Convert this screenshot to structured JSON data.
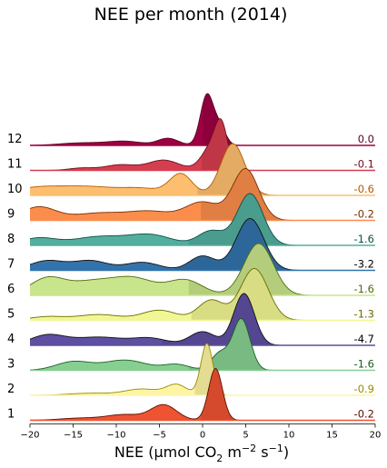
{
  "chart_data": {
    "type": "ridgeline",
    "title": "NEE per month (2014)",
    "xlabel_parts": [
      "NEE (μmol CO",
      "2",
      " m",
      "−2",
      " s",
      "−1",
      ")"
    ],
    "xlim": [
      -20,
      20
    ],
    "xticks": [
      -20,
      -15,
      -10,
      -5,
      0,
      5,
      10,
      15,
      20
    ],
    "xtick_labels": [
      "−20",
      "−15",
      "−10",
      "−5",
      "0",
      "5",
      "10",
      "15",
      "20"
    ],
    "series": [
      {
        "name": "12",
        "mean_label": "0.0",
        "mean": 0.0,
        "color": "#9e0142",
        "label_color": "#5a0125",
        "components": [
          [
            -14,
            2.5,
            0.05
          ],
          [
            -9,
            2.0,
            0.08
          ],
          [
            -4,
            1.2,
            0.14
          ],
          [
            0.5,
            0.75,
            1.0
          ],
          [
            2,
            0.7,
            0.35
          ]
        ]
      },
      {
        "name": "11",
        "mean_label": "-0.1",
        "mean": -0.1,
        "color": "#d53e4f",
        "label_color": "#6e1020",
        "components": [
          [
            -14,
            1.5,
            0.05
          ],
          [
            -9.5,
            1.8,
            0.12
          ],
          [
            -4.5,
            1.8,
            0.22
          ],
          [
            1.2,
            1.2,
            0.55
          ],
          [
            2.2,
            0.7,
            0.7
          ]
        ]
      },
      {
        "name": "10",
        "mean_label": "-0.6",
        "mean": -0.6,
        "color": "#fdbf6f",
        "label_color": "#b35a00",
        "components": [
          [
            -19,
            3.0,
            0.12
          ],
          [
            -13,
            3.0,
            0.12
          ],
          [
            -7,
            2.5,
            0.1
          ],
          [
            -2.5,
            1.3,
            0.32
          ],
          [
            3.5,
            1.4,
            0.8
          ]
        ]
      },
      {
        "name": "9",
        "mean_label": "-0.2",
        "mean": -0.2,
        "color": "#fb8d4c",
        "label_color": "#7a2f00",
        "components": [
          [
            -19,
            2.0,
            0.22
          ],
          [
            -12,
            3.0,
            0.12
          ],
          [
            -6,
            2.5,
            0.14
          ],
          [
            0,
            2.0,
            0.3
          ],
          [
            5,
            1.5,
            0.85
          ]
        ]
      },
      {
        "name": "8",
        "mean_label": "-1.6",
        "mean": -1.6,
        "color": "#53ae9e",
        "label_color": "#0e4f45",
        "components": [
          [
            -19,
            2.0,
            0.1
          ],
          [
            -12,
            3.0,
            0.12
          ],
          [
            -6,
            2.5,
            0.14
          ],
          [
            1,
            1.5,
            0.2
          ],
          [
            5.5,
            1.5,
            0.72
          ]
        ]
      },
      {
        "name": "7",
        "mean_label": "-3.2",
        "mean": -3.2,
        "color": "#3373ab",
        "label_color": "#000000",
        "components": [
          [
            -18,
            2.0,
            0.12
          ],
          [
            -13,
            2.0,
            0.12
          ],
          [
            -7,
            2.0,
            0.1
          ],
          [
            0,
            1.5,
            0.18
          ],
          [
            5.5,
            1.6,
            0.65
          ]
        ]
      },
      {
        "name": "6",
        "mean_label": "-1.6",
        "mean": -1.6,
        "color": "#c8e58b",
        "label_color": "#4e6b10",
        "components": [
          [
            -18,
            2.0,
            0.2
          ],
          [
            -13,
            2.5,
            0.15
          ],
          [
            -8,
            2.5,
            0.2
          ],
          [
            -2,
            2.0,
            0.18
          ],
          [
            6.5,
            1.7,
            0.62
          ]
        ]
      },
      {
        "name": "5",
        "mean_label": "-1.3",
        "mean": -1.3,
        "color": "#f1f794",
        "label_color": "#6b6b00",
        "components": [
          [
            -18,
            2.0,
            0.05
          ],
          [
            -12,
            2.5,
            0.08
          ],
          [
            -5,
            2.0,
            0.14
          ],
          [
            1,
            1.5,
            0.28
          ],
          [
            6,
            1.6,
            0.72
          ]
        ]
      },
      {
        "name": "4",
        "mean_label": "-4.7",
        "mean": -4.7,
        "color": "#5e4fa2",
        "label_color": "#000000",
        "components": [
          [
            -18,
            2.0,
            0.18
          ],
          [
            -12,
            3.0,
            0.15
          ],
          [
            -6,
            2.0,
            0.12
          ],
          [
            0,
            1.5,
            0.25
          ],
          [
            4.8,
            1.2,
            0.95
          ]
        ]
      },
      {
        "name": "3",
        "mean_label": "-1.6",
        "mean": -1.6,
        "color": "#87cf91",
        "label_color": "#1a5e20",
        "components": [
          [
            -15,
            2.0,
            0.15
          ],
          [
            -9,
            2.5,
            0.18
          ],
          [
            -3,
            1.5,
            0.1
          ],
          [
            2,
            1.0,
            0.3
          ],
          [
            4.5,
            1.0,
            0.9
          ]
        ]
      },
      {
        "name": "2",
        "mean_label": "-0.9",
        "mean": -0.9,
        "color": "#fef5a4",
        "label_color": "#9a8a00",
        "components": [
          [
            -13,
            2.5,
            0.04
          ],
          [
            -7,
            2.0,
            0.12
          ],
          [
            -3,
            1.2,
            0.2
          ],
          [
            0.5,
            0.7,
            1.0
          ]
        ]
      },
      {
        "name": "1",
        "mean_label": "-0.2",
        "mean": -0.2,
        "color": "#ee5332",
        "label_color": "#5a0e00",
        "components": [
          [
            -14,
            2.5,
            0.04
          ],
          [
            -9,
            2.0,
            0.1
          ],
          [
            -4.5,
            1.5,
            0.28
          ],
          [
            1.5,
            0.8,
            0.95
          ]
        ]
      }
    ]
  }
}
